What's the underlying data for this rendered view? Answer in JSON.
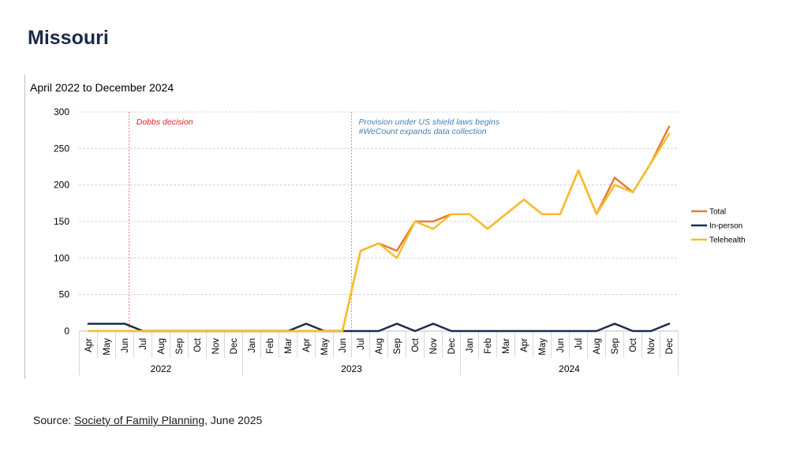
{
  "page_title": "Missouri",
  "source": {
    "prefix": "Source: ",
    "link_text": "Society of Family Planning",
    "suffix": ", June 2025"
  },
  "colors": {
    "total": "#e87a35",
    "in_person": "#1f2d4d",
    "telehealth": "#f7bd2b",
    "dobbs": "#e02020",
    "shield": "#4a7eb5",
    "title": "#1b2a4a"
  },
  "chart_data": {
    "type": "line",
    "title": "April 2022 to December 2024",
    "xlabel": "",
    "ylabel": "",
    "ylim": [
      0,
      300
    ],
    "yticks": [
      0,
      50,
      100,
      150,
      200,
      250,
      300
    ],
    "grid": true,
    "legend_position": "right",
    "categories": [
      "Apr",
      "May",
      "Jun",
      "Jul",
      "Aug",
      "Sep",
      "Oct",
      "Nov",
      "Dec",
      "Jan",
      "Feb",
      "Mar",
      "Apr",
      "May",
      "Jun",
      "Jul",
      "Aug",
      "Sep",
      "Oct",
      "Nov",
      "Dec",
      "Jan",
      "Feb",
      "Mar",
      "Apr",
      "May",
      "Jun",
      "Jul",
      "Aug",
      "Sep",
      "Oct",
      "Nov",
      "Dec"
    ],
    "year_groups": [
      {
        "label": "2022",
        "start": 0,
        "end": 8
      },
      {
        "label": "2023",
        "start": 9,
        "end": 20
      },
      {
        "label": "2024",
        "start": 21,
        "end": 32
      }
    ],
    "series": [
      {
        "name": "Total",
        "color": "#e87a35",
        "values": [
          10,
          10,
          10,
          0,
          0,
          0,
          0,
          0,
          0,
          0,
          0,
          0,
          0,
          0,
          0,
          110,
          120,
          110,
          150,
          150,
          160,
          160,
          140,
          160,
          180,
          160,
          160,
          220,
          160,
          210,
          190,
          230,
          280
        ]
      },
      {
        "name": "In-person",
        "color": "#1f2d4d",
        "values": [
          10,
          10,
          10,
          0,
          0,
          0,
          0,
          0,
          0,
          0,
          0,
          0,
          10,
          0,
          0,
          0,
          0,
          10,
          0,
          10,
          0,
          0,
          0,
          0,
          0,
          0,
          0,
          0,
          0,
          10,
          0,
          0,
          10
        ]
      },
      {
        "name": "Telehealth",
        "color": "#f7bd2b",
        "values": [
          0,
          0,
          0,
          0,
          0,
          0,
          0,
          0,
          0,
          0,
          0,
          0,
          0,
          0,
          0,
          110,
          120,
          100,
          150,
          140,
          160,
          160,
          140,
          160,
          180,
          160,
          160,
          220,
          160,
          200,
          190,
          230,
          270
        ]
      }
    ],
    "annotations": [
      {
        "id": "dobbs",
        "at_index": 2.25,
        "lines": [
          "Dobbs decision"
        ],
        "color": "#e02020"
      },
      {
        "id": "shield",
        "at_index": 14.5,
        "lines": [
          "Provision under US shield laws begins",
          "#WeCount expands data collection"
        ],
        "color": "#4a7eb5"
      }
    ]
  }
}
